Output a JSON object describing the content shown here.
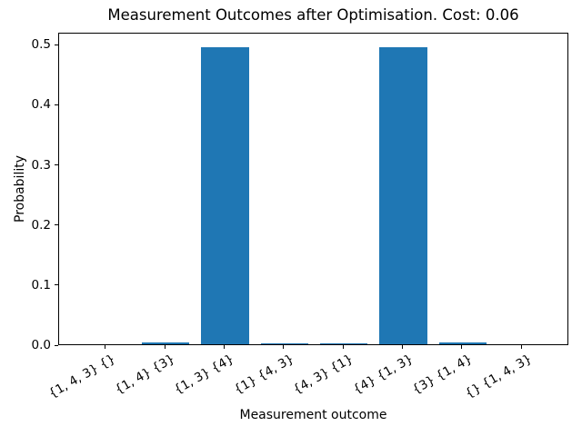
{
  "chart_data": {
    "type": "bar",
    "title": "Measurement Outcomes after Optimisation. Cost: 0.06",
    "xlabel": "Measurement outcome",
    "ylabel": "Probability",
    "categories": [
      "{1, 4, 3} {}",
      "{1, 4} {3}",
      "{1, 3} {4}",
      "{1} {4, 3}",
      "{4, 3} {1}",
      "{4} {1, 3}",
      "{3} {1, 4}",
      "{} {1, 4, 3}"
    ],
    "values": [
      0.0,
      0.003,
      0.494,
      0.0015,
      0.0015,
      0.494,
      0.003,
      0.0
    ],
    "yticks": [
      0.0,
      0.1,
      0.2,
      0.3,
      0.4,
      0.5
    ],
    "ylim": [
      0,
      0.52
    ],
    "xlim": [
      -0.79,
      7.79
    ],
    "bar_rel_width": 0.8,
    "bar_color": "#1f77b4",
    "axis_color": "#000000",
    "tick_label_rotation": 30,
    "grid": false,
    "legend": null
  }
}
